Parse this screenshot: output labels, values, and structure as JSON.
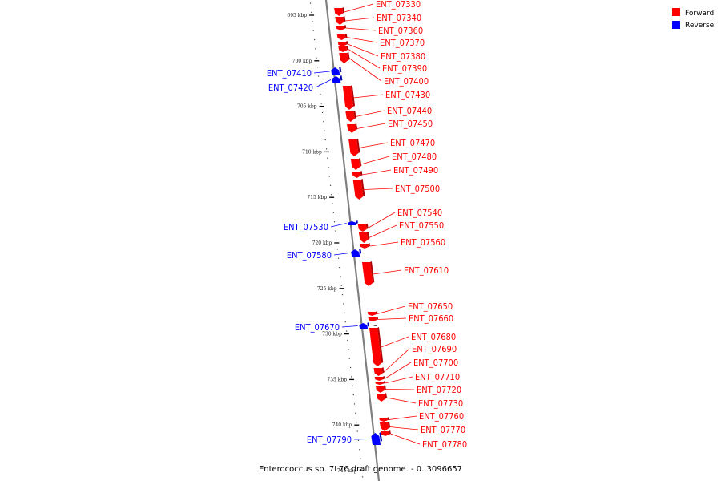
{
  "caption": "Enterococcus sp. 7L76 draft genome. - 0..3096657",
  "colors": {
    "forward": "#ff0000",
    "reverse": "#0000ff",
    "backbone": "#7f7f7f"
  },
  "legend": [
    {
      "label": "Forward",
      "strand": "forward"
    },
    {
      "label": "Reverse",
      "strand": "reverse"
    }
  ],
  "ticks": [
    {
      "kbp": 695,
      "label": "695 kbp"
    },
    {
      "kbp": 700,
      "label": "700 kbp"
    },
    {
      "kbp": 705,
      "label": "705 kbp"
    },
    {
      "kbp": 710,
      "label": "710 kbp"
    },
    {
      "kbp": 715,
      "label": "715 kbp"
    },
    {
      "kbp": 720,
      "label": "720 kbp"
    },
    {
      "kbp": 725,
      "label": "725 kbp"
    },
    {
      "kbp": 730,
      "label": "730 kbp"
    },
    {
      "kbp": 735,
      "label": "735 kbp"
    },
    {
      "kbp": 740,
      "label": "740 kbp"
    },
    {
      "kbp": 745,
      "label": "745 kbp"
    }
  ],
  "genes": [
    {
      "id": "ENT_07330",
      "strand": "forward"
    },
    {
      "id": "ENT_07340",
      "strand": "forward"
    },
    {
      "id": "ENT_07360",
      "strand": "forward"
    },
    {
      "id": "ENT_07370",
      "strand": "forward"
    },
    {
      "id": "ENT_07380",
      "strand": "forward"
    },
    {
      "id": "ENT_07390",
      "strand": "forward"
    },
    {
      "id": "ENT_07400",
      "strand": "forward"
    },
    {
      "id": "ENT_07410",
      "strand": "reverse"
    },
    {
      "id": "ENT_07420",
      "strand": "reverse"
    },
    {
      "id": "ENT_07430",
      "strand": "forward"
    },
    {
      "id": "ENT_07440",
      "strand": "forward"
    },
    {
      "id": "ENT_07450",
      "strand": "forward"
    },
    {
      "id": "ENT_07470",
      "strand": "forward"
    },
    {
      "id": "ENT_07480",
      "strand": "forward"
    },
    {
      "id": "ENT_07490",
      "strand": "forward"
    },
    {
      "id": "ENT_07500",
      "strand": "forward"
    },
    {
      "id": "ENT_07530",
      "strand": "reverse"
    },
    {
      "id": "ENT_07540",
      "strand": "forward"
    },
    {
      "id": "ENT_07550",
      "strand": "forward"
    },
    {
      "id": "ENT_07560",
      "strand": "forward"
    },
    {
      "id": "ENT_07580",
      "strand": "reverse"
    },
    {
      "id": "ENT_07610",
      "strand": "forward"
    },
    {
      "id": "ENT_07650",
      "strand": "forward"
    },
    {
      "id": "ENT_07660",
      "strand": "forward"
    },
    {
      "id": "ENT_07670",
      "strand": "reverse"
    },
    {
      "id": "ENT_07680",
      "strand": "forward"
    },
    {
      "id": "ENT_07690",
      "strand": "forward"
    },
    {
      "id": "ENT_07700",
      "strand": "forward"
    },
    {
      "id": "ENT_07710",
      "strand": "forward"
    },
    {
      "id": "ENT_07720",
      "strand": "forward"
    },
    {
      "id": "ENT_07730",
      "strand": "forward"
    },
    {
      "id": "ENT_07760",
      "strand": "forward"
    },
    {
      "id": "ENT_07770",
      "strand": "forward"
    },
    {
      "id": "ENT_07780",
      "strand": "forward"
    },
    {
      "id": "ENT_07790",
      "strand": "reverse"
    }
  ]
}
